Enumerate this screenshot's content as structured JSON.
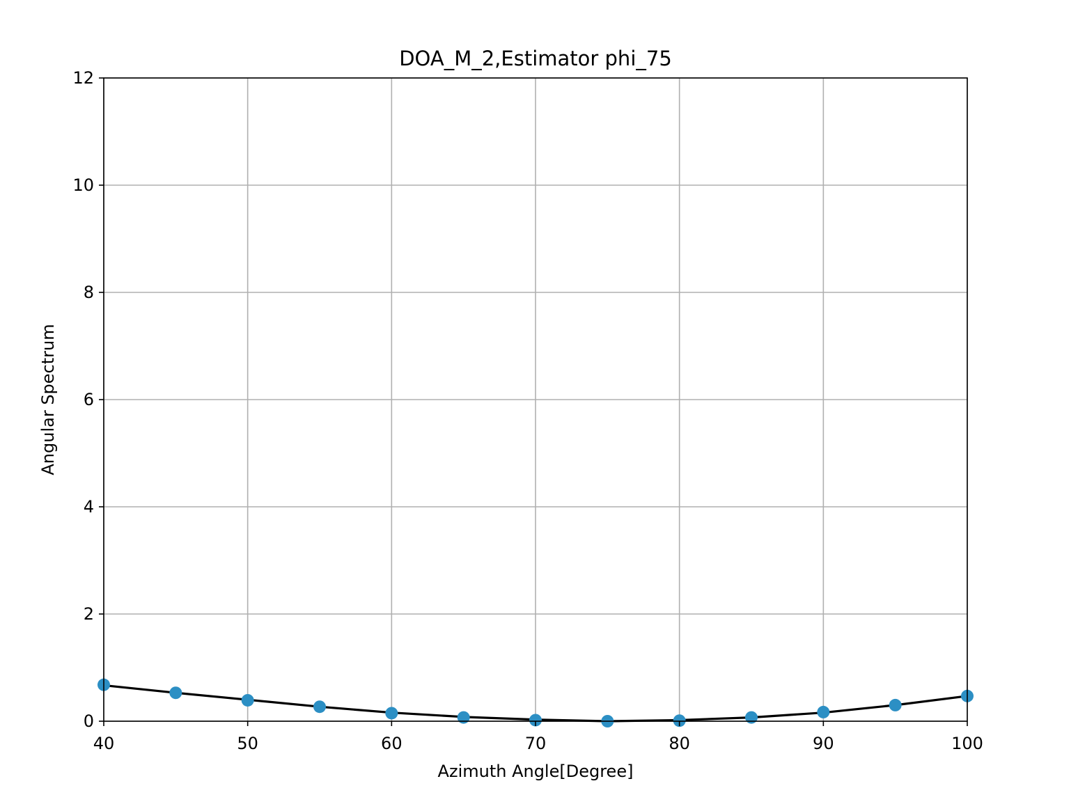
{
  "chart_data": {
    "type": "scatter",
    "title": "DOA_M_2,Estimator phi_75",
    "xlabel": "Azimuth Angle[Degree]",
    "ylabel": "Angular Spectrum",
    "xlim": [
      40,
      100
    ],
    "ylim": [
      0,
      12
    ],
    "xticks": [
      40,
      50,
      60,
      70,
      80,
      90,
      100
    ],
    "yticks": [
      0,
      2,
      4,
      6,
      8,
      10,
      12
    ],
    "grid": true,
    "series": [
      {
        "kind": "scatter",
        "color": "#2c8fc4",
        "x": [
          40,
          45,
          50,
          55,
          60,
          65,
          70,
          75,
          80,
          85,
          90,
          95,
          100
        ],
        "y": [
          0.68,
          0.53,
          0.39,
          0.27,
          0.15,
          0.07,
          0.02,
          0.0,
          0.01,
          0.07,
          0.17,
          0.3,
          0.47
        ]
      },
      {
        "kind": "line",
        "color": "#000000",
        "x": [
          40,
          45,
          50,
          55,
          60,
          65,
          70,
          75,
          80,
          85,
          90,
          95,
          100
        ],
        "y": [
          0.67,
          0.53,
          0.4,
          0.27,
          0.16,
          0.08,
          0.03,
          0.0,
          0.02,
          0.07,
          0.16,
          0.3,
          0.47
        ]
      }
    ]
  }
}
